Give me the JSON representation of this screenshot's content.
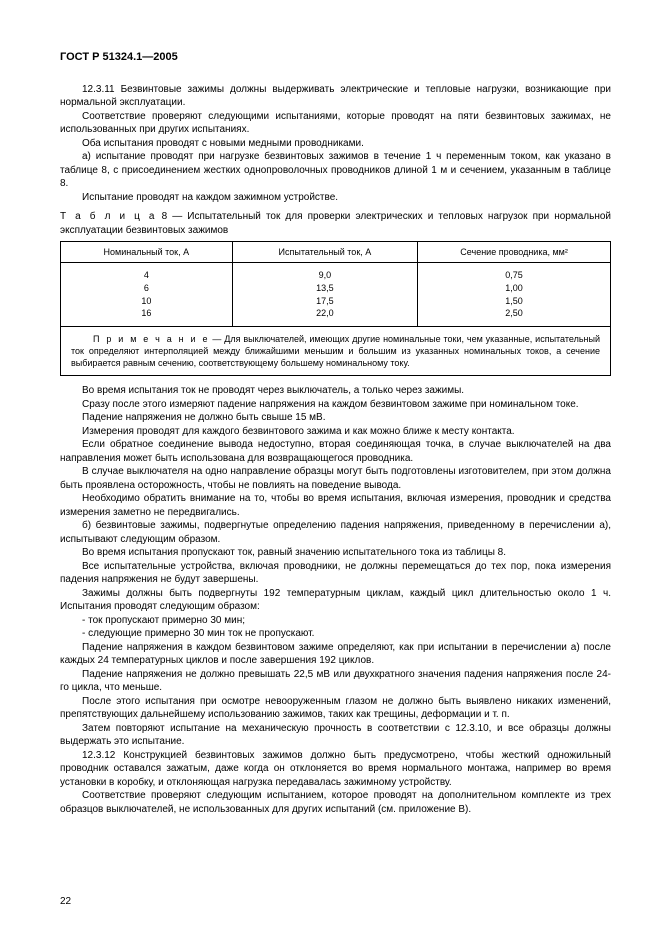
{
  "header": "ГОСТ Р 51324.1—2005",
  "p1": "12.3.11 Безвинтовые зажимы должны выдерживать электрические и тепловые нагрузки, возникающие при нормальной эксплуатации.",
  "p2": "Соответствие проверяют следующими испытаниями, которые проводят на пяти безвинтовых зажимах, не использованных при других испытаниях.",
  "p3": "Оба испытания проводят с новыми медными проводниками.",
  "p4": "а) испытание проводят при нагрузке безвинтовых зажимов в течение 1 ч переменным током, как указано в таблице 8, с присоединением жестких однопроволочных проводников длиной 1 м и сечением, указанным в таблице 8.",
  "p5": "Испытание проводят на каждом зажимном устройстве.",
  "tableCaption_label": "Т а б л и ц а",
  "tableCaption_rest": "  8 — Испытательный ток для проверки электрических и тепловых  нагрузок при нормальной эксплуатации безвинтовых зажимов",
  "table": {
    "h1": "Номинальный ток, А",
    "h2": "Испытательный  ток, А",
    "h3": "Сечение проводника, мм²",
    "rows": [
      {
        "c1": "4",
        "c2": "9,0",
        "c3": "0,75"
      },
      {
        "c1": "6",
        "c2": "13,5",
        "c3": "1,00"
      },
      {
        "c1": "10",
        "c2": "17,5",
        "c3": "1,50"
      },
      {
        "c1": "16",
        "c2": "22,0",
        "c3": "2,50"
      }
    ],
    "note_label": "П р и м е ч а н и е",
    "note_rest": " — Для выключателей, имеющих другие номинальные токи, чем указанные, испытательный ток определяют  интерполяцией между ближайшими меньшим и большим из указанных номинальных токов, а сечение выбирается равным  сечению, соответствующему большему номинальному току."
  },
  "p6": "Во время испытания ток не проводят через выключатель, а только через зажимы.",
  "p7": "Сразу после этого измеряют падение напряжения на каждом безвинтовом зажиме при номинальном токе.",
  "p8": "Падение напряжения не должно быть свыше 15 мВ.",
  "p9": "Измерения проводят  для каждого безвинтового зажима и как можно ближе к месту контакта.",
  "p10": "Если обратное соединение вывода недоступно, вторая соединяющая точка, в случае выключателей на два направления может быть использована для возвращающегося проводника.",
  "p11": "В случае выключателя на одно направление образцы могут быть подготовлены изготовителем, при этом должна быть проявлена осторожность, чтобы не повлиять на поведение вывода.",
  "p12": "Необходимо обратить внимание на то, чтобы во время испытания, включая измерения, проводник и средства измерения заметно не передвигались.",
  "p13": "б) безвинтовые зажимы, подвергнутые определению падения напряжения, приведенному в перечислении а), испытывают следующим образом.",
  "p14": "Во время испытания пропускают ток, равный значению испытательного тока из таблицы 8.",
  "p15": "Все испытательные устройства, включая проводники, не должны перемещаться до тех пор, пока измерения падения напряжения не будут завершены.",
  "p16": "Зажимы должны быть подвергнуты 192 температурным циклам, каждый цикл длительностью около 1 ч. Испытания проводят следующим образом:",
  "p17": "- ток пропускают примерно 30 мин;",
  "p18": "- следующие примерно 30 мин ток не пропускают.",
  "p19": "Падение напряжения в каждом безвинтовом зажиме определяют, как при испытании в перечислении а) после каждых 24 температурных циклов и после завершения 192 циклов.",
  "p20": "Падение напряжения не должно превышать 22,5 мВ или двухкратного значения падения напряжения после 24-го цикла, что меньше.",
  "p21": "После этого испытания при осмотре невооруженным глазом не должно быть выявлено никаких изменений, препятствующих дальнейшему использованию зажимов, таких как трещины, деформации и т. п.",
  "p22": "Затем повторяют испытание на механическую прочность в соответствии с 12.3.10, и все образцы должны выдержать это испытание.",
  "p23": "12.3.12 Конструкцией безвинтовых зажимов должно быть предусмотрено, чтобы жесткий одножильный проводник оставался зажатым, даже когда он отклоняется во время нормального монтажа, например во время установки в коробку, и отклоняющая нагрузка передавалась зажимному устройству.",
  "p24": "Соответствие проверяют следующим испытанием, которое проводят на дополнительном комплекте из трех образцов выключателей, не использованных для других испытаний (см. приложение В).",
  "pageNumber": "22"
}
